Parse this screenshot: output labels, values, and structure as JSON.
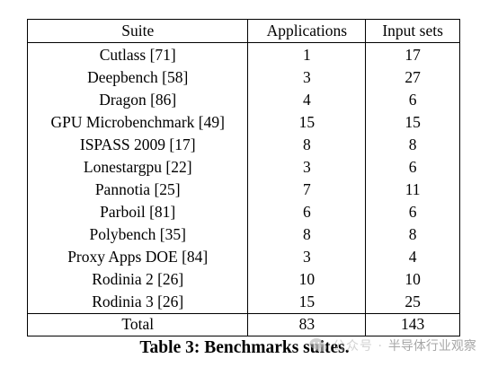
{
  "table": {
    "headers": [
      "Suite",
      "Applications",
      "Input sets"
    ],
    "rows": [
      [
        "Cutlass [71]",
        "1",
        "17"
      ],
      [
        "Deepbench [58]",
        "3",
        "27"
      ],
      [
        "Dragon [86]",
        "4",
        "6"
      ],
      [
        "GPU Microbenchmark [49]",
        "15",
        "15"
      ],
      [
        "ISPASS 2009 [17]",
        "8",
        "8"
      ],
      [
        "Lonestargpu [22]",
        "3",
        "6"
      ],
      [
        "Pannotia [25]",
        "7",
        "11"
      ],
      [
        "Parboil [81]",
        "6",
        "6"
      ],
      [
        "Polybench [35]",
        "8",
        "8"
      ],
      [
        "Proxy Apps DOE [84]",
        "3",
        "4"
      ],
      [
        "Rodinia 2 [26]",
        "10",
        "10"
      ],
      [
        "Rodinia 3 [26]",
        "15",
        "25"
      ]
    ],
    "total": [
      "Total",
      "83",
      "143"
    ]
  },
  "caption": "Table 3: Benchmarks suites.",
  "watermark": {
    "icon": "wechat-icon",
    "prefix": "公众号 ·",
    "text": "半导体行业观察"
  }
}
